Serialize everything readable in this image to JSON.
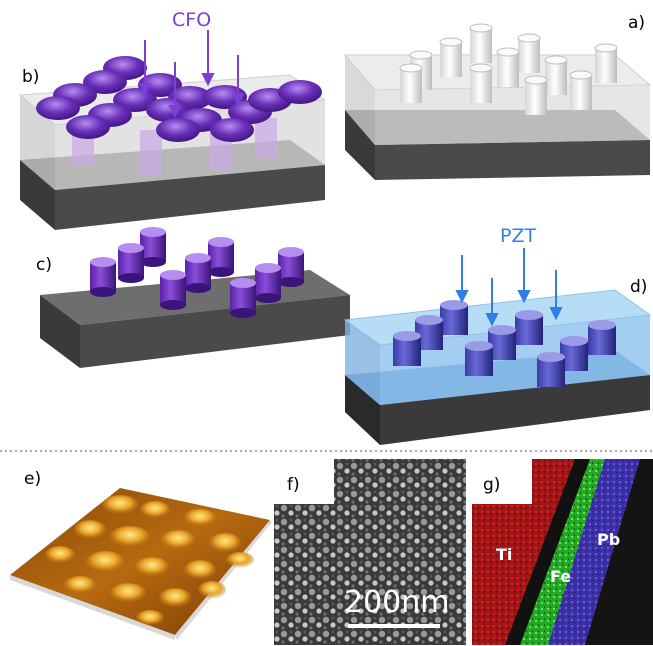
{
  "panels": {
    "a": "a)",
    "b": "b)",
    "c": "c)",
    "d": "d)",
    "e": "e)",
    "f": "f)",
    "g": "g)"
  },
  "materials": {
    "cfo": "CFO",
    "pzt": "PZT"
  },
  "elements": {
    "ti": "Ti",
    "fe": "Fe",
    "pb": "Pb"
  },
  "scale_bar": "200nm",
  "colors": {
    "cfo_purple": "#6a2fb8",
    "pzt_blue": "#2f7fe6",
    "substrate_gray": "#5a5a5a",
    "ti_red": "#c21b1b",
    "fe_green": "#31c431",
    "pb_blue": "#4b3fc0"
  }
}
